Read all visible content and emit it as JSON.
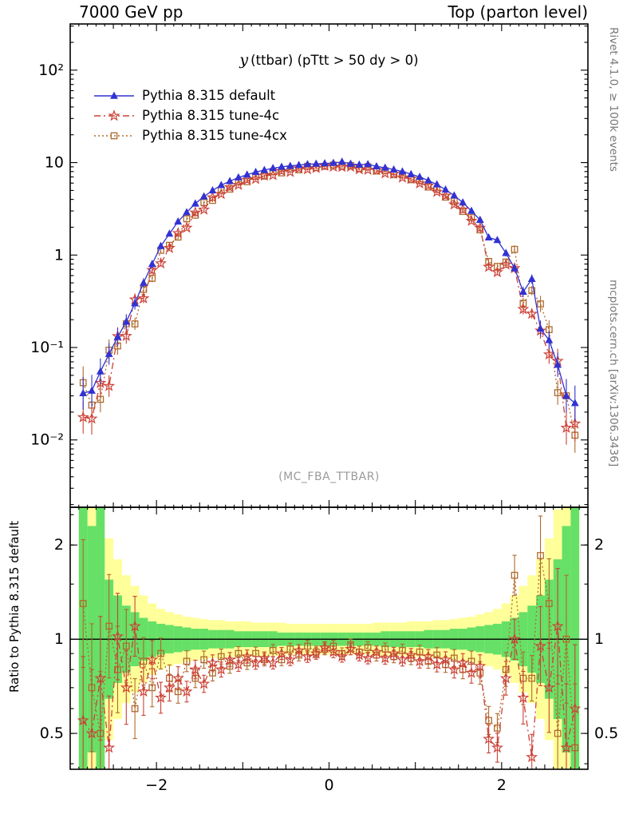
{
  "header": {
    "left": "7000 GeV pp",
    "right": "Top (parton level)"
  },
  "side_text": {
    "top": "Rivet 4.1.0, ≥ 100k events",
    "bottom": "mcplots.cern.ch [arXiv:1306.3436]"
  },
  "watermark": "(MC_FBA_TTBAR)",
  "chart_data": {
    "type": "line",
    "title": "y (ttbar) (pTtt > 50 dy > 0)",
    "title_lead": "y",
    "title_rest": "(ttbar) (pTtt > 50 dy > 0)",
    "ylabel_ratio": "Ratio to Pythia 8.315 default",
    "xlim": [
      -3,
      3
    ],
    "ylim_main": [
      0.00187,
      316
    ],
    "ylim_ratio": [
      0.384,
      2.64
    ],
    "log_y_main": true,
    "log_y_ratio": true,
    "grid": false,
    "legend_position": "top-left",
    "err_scale": 0.09,
    "ratio_err_scale": 1.5,
    "xticks": [
      {
        "v": -2,
        "label": "−2"
      },
      {
        "v": 0,
        "label": "0"
      },
      {
        "v": 2,
        "label": "2"
      }
    ],
    "yticks_main": [
      {
        "v": 100,
        "label": "10²"
      },
      {
        "v": 10,
        "label": "10"
      },
      {
        "v": 1,
        "label": "1"
      },
      {
        "v": 0.1,
        "label": "10⁻¹"
      },
      {
        "v": 0.01,
        "label": "10⁻²"
      }
    ],
    "yticks_ratio": [
      {
        "v": 2,
        "label": "2"
      },
      {
        "v": 1,
        "label": "1"
      },
      {
        "v": 0.5,
        "label": "0.5"
      }
    ],
    "yticks_ratio_minor": [
      0.4,
      0.5,
      0.6,
      0.7,
      0.8,
      0.9,
      1.5,
      2,
      2.5
    ],
    "x": [
      -2.85,
      -2.75,
      -2.65,
      -2.55,
      -2.45,
      -2.35,
      -2.25,
      -2.15,
      -2.05,
      -1.95,
      -1.85,
      -1.75,
      -1.65,
      -1.55,
      -1.45,
      -1.35,
      -1.25,
      -1.15,
      -1.05,
      -0.95,
      -0.85,
      -0.75,
      -0.65,
      -0.55,
      -0.45,
      -0.35,
      -0.25,
      -0.15,
      -0.05,
      0.05,
      0.15,
      0.25,
      0.35,
      0.45,
      0.55,
      0.65,
      0.75,
      0.85,
      0.95,
      1.05,
      1.15,
      1.25,
      1.35,
      1.45,
      1.55,
      1.65,
      1.75,
      1.85,
      1.95,
      2.05,
      2.15,
      2.25,
      2.35,
      2.45,
      2.55,
      2.65,
      2.75,
      2.85
    ],
    "series": [
      {
        "name": "Pythia 8.315 default",
        "role": "reference",
        "color": "#3232d2",
        "marker": "triangle",
        "line": "solid",
        "values": [
          0.032,
          0.034,
          0.055,
          0.085,
          0.13,
          0.19,
          0.3,
          0.5,
          0.8,
          1.25,
          1.7,
          2.3,
          2.9,
          3.6,
          4.3,
          5.0,
          5.7,
          6.3,
          6.9,
          7.4,
          7.9,
          8.3,
          8.7,
          9.0,
          9.2,
          9.4,
          9.6,
          9.7,
          9.8,
          9.9,
          10.2,
          9.7,
          9.5,
          9.6,
          9.1,
          8.8,
          8.4,
          8.0,
          7.5,
          7.0,
          6.4,
          5.8,
          5.1,
          4.4,
          3.7,
          3.0,
          2.4,
          1.55,
          1.45,
          1.05,
          0.72,
          0.4,
          0.55,
          0.16,
          0.12,
          0.065,
          0.03,
          0.025
        ]
      },
      {
        "name": "Pythia 8.315 tune-4c",
        "color": "#cc4136",
        "marker": "star",
        "line": "dashdot",
        "ratio_to_default": [
          0.55,
          0.5,
          0.75,
          0.45,
          1.02,
          0.7,
          1.1,
          0.68,
          0.86,
          0.65,
          0.7,
          0.75,
          0.68,
          0.8,
          0.72,
          0.84,
          0.8,
          0.86,
          0.83,
          0.88,
          0.84,
          0.87,
          0.84,
          0.9,
          0.86,
          0.92,
          0.88,
          0.9,
          0.94,
          0.91,
          0.88,
          0.93,
          0.89,
          0.87,
          0.91,
          0.87,
          0.9,
          0.86,
          0.89,
          0.85,
          0.88,
          0.83,
          0.86,
          0.8,
          0.84,
          0.78,
          0.82,
          0.48,
          0.45,
          0.75,
          1.0,
          0.65,
          0.42,
          0.95,
          0.7,
          1.1,
          0.45,
          0.6
        ]
      },
      {
        "name": "Pythia 8.315 tune-4cx",
        "color": "#b06a2c",
        "marker": "square",
        "line": "dotted",
        "ratio_to_default": [
          1.3,
          0.7,
          0.5,
          1.1,
          0.8,
          0.95,
          0.6,
          0.85,
          0.7,
          0.9,
          0.75,
          0.68,
          0.85,
          0.75,
          0.86,
          0.78,
          0.88,
          0.82,
          0.9,
          0.84,
          0.9,
          0.86,
          0.92,
          0.86,
          0.93,
          0.89,
          0.95,
          0.91,
          0.93,
          0.95,
          0.9,
          0.96,
          0.91,
          0.94,
          0.89,
          0.93,
          0.88,
          0.92,
          0.87,
          0.91,
          0.85,
          0.89,
          0.83,
          0.87,
          0.8,
          0.85,
          0.78,
          0.55,
          0.52,
          0.8,
          1.6,
          0.75,
          0.75,
          1.85,
          1.3,
          0.5,
          1.0,
          0.45
        ]
      }
    ],
    "bands": {
      "green": {
        "color": "#66e066",
        "factors": [
          3.0,
          2.3,
          3.0,
          1.55,
          1.38,
          1.28,
          1.22,
          1.17,
          1.14,
          1.12,
          1.11,
          1.1,
          1.09,
          1.08,
          1.08,
          1.07,
          1.07,
          1.07,
          1.06,
          1.06,
          1.06,
          1.06,
          1.06,
          1.05,
          1.05,
          1.05,
          1.05,
          1.05,
          1.05,
          1.05,
          1.05,
          1.05,
          1.05,
          1.05,
          1.05,
          1.06,
          1.06,
          1.06,
          1.06,
          1.06,
          1.07,
          1.07,
          1.07,
          1.08,
          1.08,
          1.09,
          1.1,
          1.11,
          1.12,
          1.14,
          1.17,
          1.22,
          1.28,
          1.38,
          1.55,
          1.8,
          2.3,
          3.0
        ]
      },
      "yellow": {
        "color": "#ffff99",
        "factors": [
          5.0,
          3.5,
          2.6,
          2.1,
          1.8,
          1.6,
          1.48,
          1.38,
          1.3,
          1.25,
          1.22,
          1.2,
          1.18,
          1.17,
          1.16,
          1.15,
          1.15,
          1.14,
          1.14,
          1.14,
          1.13,
          1.13,
          1.13,
          1.13,
          1.12,
          1.12,
          1.12,
          1.12,
          1.12,
          1.12,
          1.12,
          1.12,
          1.12,
          1.12,
          1.13,
          1.13,
          1.13,
          1.13,
          1.14,
          1.14,
          1.14,
          1.15,
          1.15,
          1.16,
          1.17,
          1.18,
          1.2,
          1.22,
          1.25,
          1.3,
          1.38,
          1.48,
          1.6,
          1.8,
          2.1,
          2.6,
          3.5,
          5.0
        ]
      }
    }
  }
}
